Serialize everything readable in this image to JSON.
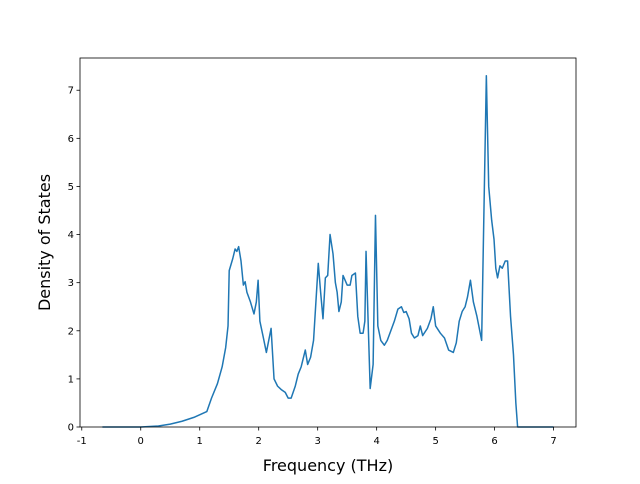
{
  "chart_data": {
    "type": "line",
    "xlabel": "Frequency (THz)",
    "ylabel": "Density of States",
    "color": "#1f77b4",
    "x": [
      -0.65,
      0,
      0.3,
      0.5,
      0.7,
      0.9,
      1.12,
      1.2,
      1.3,
      1.38,
      1.44,
      1.48,
      1.5,
      1.56,
      1.6,
      1.63,
      1.66,
      1.7,
      1.74,
      1.77,
      1.8,
      1.86,
      1.92,
      1.96,
      1.99,
      2.02,
      2.08,
      2.13,
      2.21,
      2.26,
      2.32,
      2.38,
      2.45,
      2.5,
      2.55,
      2.62,
      2.67,
      2.72,
      2.79,
      2.83,
      2.88,
      2.93,
      2.97,
      3.01,
      3.05,
      3.09,
      3.13,
      3.17,
      3.21,
      3.26,
      3.3,
      3.33,
      3.36,
      3.4,
      3.43,
      3.5,
      3.55,
      3.58,
      3.64,
      3.68,
      3.72,
      3.77,
      3.8,
      3.82,
      3.86,
      3.89,
      3.94,
      3.98,
      4.02,
      4.07,
      4.13,
      4.18,
      4.24,
      4.3,
      4.36,
      4.42,
      4.46,
      4.5,
      4.55,
      4.59,
      4.64,
      4.7,
      4.74,
      4.78,
      4.86,
      4.92,
      4.96,
      5.0,
      5.08,
      5.15,
      5.22,
      5.3,
      5.35,
      5.4,
      5.45,
      5.5,
      5.54,
      5.59,
      5.64,
      5.7,
      5.78,
      5.86,
      5.9,
      5.95,
      5.99,
      6.02,
      6.05,
      6.09,
      6.13,
      6.18,
      6.22,
      6.27,
      6.32,
      6.36,
      6.39,
      6.6,
      7.0
    ],
    "values": [
      0,
      0,
      0.02,
      0.06,
      0.12,
      0.2,
      0.32,
      0.6,
      0.9,
      1.25,
      1.65,
      2.1,
      3.25,
      3.5,
      3.7,
      3.65,
      3.75,
      3.45,
      2.95,
      3.02,
      2.8,
      2.6,
      2.35,
      2.6,
      3.05,
      2.2,
      1.85,
      1.55,
      2.05,
      1.0,
      0.85,
      0.78,
      0.72,
      0.6,
      0.6,
      0.85,
      1.1,
      1.25,
      1.6,
      1.3,
      1.45,
      1.8,
      2.6,
      3.4,
      2.8,
      2.25,
      3.1,
      3.15,
      4.0,
      3.6,
      3.0,
      2.8,
      2.4,
      2.6,
      3.15,
      2.95,
      2.95,
      3.15,
      3.2,
      2.3,
      1.95,
      1.95,
      2.2,
      3.65,
      2.0,
      0.8,
      1.3,
      4.4,
      2.1,
      1.8,
      1.7,
      1.8,
      2.0,
      2.2,
      2.45,
      2.5,
      2.38,
      2.4,
      2.25,
      1.95,
      1.85,
      1.9,
      2.1,
      1.9,
      2.05,
      2.25,
      2.5,
      2.1,
      1.95,
      1.85,
      1.6,
      1.55,
      1.75,
      2.2,
      2.4,
      2.5,
      2.7,
      3.05,
      2.6,
      2.3,
      1.8,
      7.3,
      5.0,
      4.3,
      3.9,
      3.3,
      3.1,
      3.35,
      3.3,
      3.45,
      3.45,
      2.3,
      1.5,
      0.5,
      0,
      0,
      0
    ],
    "xlim": [
      -1.03,
      7.38
    ],
    "ylim": [
      0,
      7.67
    ],
    "xticks": [
      -1,
      0,
      1,
      2,
      3,
      4,
      5,
      6,
      7
    ],
    "yticks": [
      0,
      1,
      2,
      3,
      4,
      5,
      6,
      7
    ]
  }
}
